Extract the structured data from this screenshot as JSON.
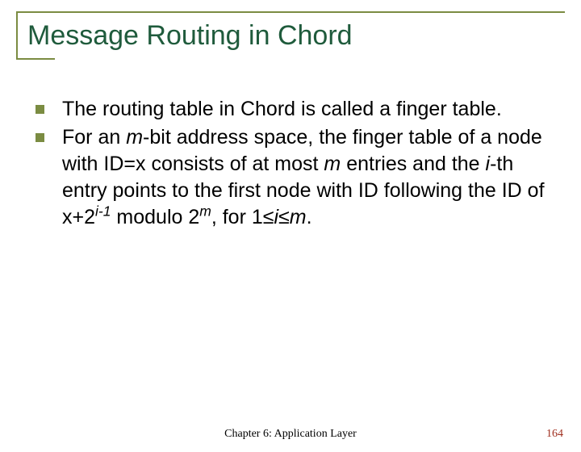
{
  "colors": {
    "accent": "#7b8c42",
    "title": "#1f5b3c",
    "page_num": "#a03020"
  },
  "title": "Message Routing in Chord",
  "bullets": [
    {
      "html": "The routing table in Chord is called a finger table."
    },
    {
      "html": "For an <span class=\"ital\">m</span>-bit address space, the finger table of a node with ID=x consists of at most <span class=\"ital\">m</span> entries and the <span class=\"ital\">i</span>-th entry points to the first node with ID following the ID of x+2<span class=\"sup\">i-1</span> modulo 2<span class=\"sup\">m</span>, for 1≤<span class=\"ital\">i</span>≤<span class=\"ital\">m</span>."
    }
  ],
  "footer": "Chapter 6: Application Layer",
  "page": "164"
}
